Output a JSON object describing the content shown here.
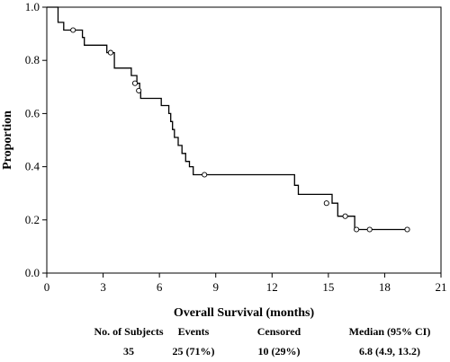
{
  "chart_data": {
    "type": "line",
    "title": "",
    "xlabel": "Overall Survival (months)",
    "ylabel": "Proportion",
    "xlim": [
      0,
      21
    ],
    "ylim": [
      0.0,
      1.0
    ],
    "xticks": [
      0,
      3,
      6,
      9,
      12,
      15,
      18,
      21
    ],
    "yticks": [
      "0.0",
      "0.2",
      "0.4",
      "0.6",
      "0.8",
      "1.0"
    ],
    "grid": false,
    "series": [
      {
        "step_curve": [
          [
            0,
            1.0
          ],
          [
            0.6,
            0.943
          ],
          [
            0.9,
            0.914
          ],
          [
            1.9,
            0.886
          ],
          [
            2.0,
            0.857
          ],
          [
            3.2,
            0.829
          ],
          [
            3.6,
            0.771
          ],
          [
            4.5,
            0.743
          ],
          [
            4.8,
            0.714
          ],
          [
            4.95,
            0.686
          ],
          [
            5.0,
            0.657
          ],
          [
            6.1,
            0.63
          ],
          [
            6.5,
            0.6
          ],
          [
            6.6,
            0.57
          ],
          [
            6.7,
            0.54
          ],
          [
            6.8,
            0.51
          ],
          [
            7.0,
            0.48
          ],
          [
            7.2,
            0.45
          ],
          [
            7.4,
            0.42
          ],
          [
            7.6,
            0.4
          ],
          [
            7.8,
            0.37
          ],
          [
            13.2,
            0.33
          ],
          [
            13.4,
            0.296
          ],
          [
            15.2,
            0.263
          ],
          [
            15.5,
            0.214
          ],
          [
            16.4,
            0.164
          ],
          [
            19.2,
            0.164
          ]
        ],
        "censored": [
          [
            1.4,
            0.914
          ],
          [
            3.4,
            0.829
          ],
          [
            4.7,
            0.714
          ],
          [
            4.9,
            0.686
          ],
          [
            8.4,
            0.37
          ],
          [
            14.9,
            0.263
          ],
          [
            15.9,
            0.214
          ],
          [
            16.5,
            0.164
          ],
          [
            17.2,
            0.164
          ],
          [
            19.2,
            0.164
          ]
        ]
      }
    ]
  },
  "summary": {
    "headers": [
      "No. of Subjects",
      "Events",
      "Censored",
      "Median (95% CI)"
    ],
    "values": [
      "35",
      "25 (71%)",
      "10 (29%)",
      "6.8 (4.9, 13.2)"
    ]
  }
}
